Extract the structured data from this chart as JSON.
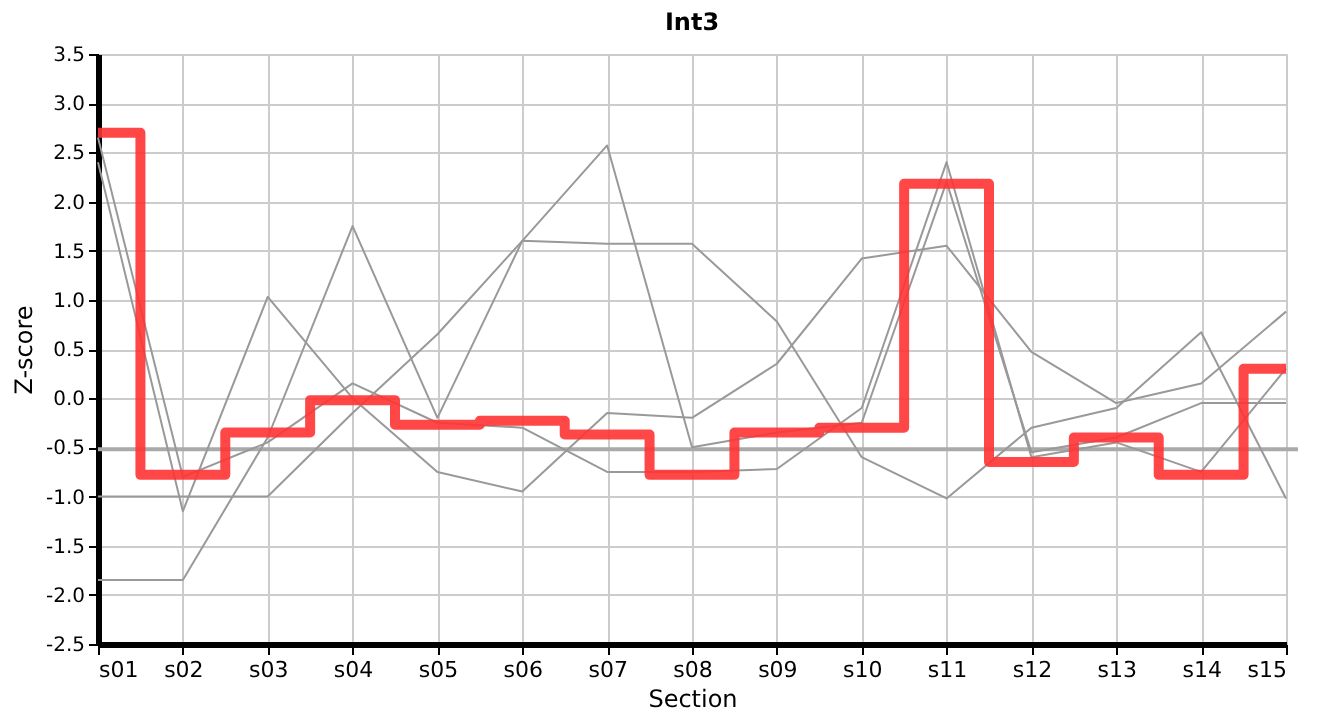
{
  "chart_data": {
    "type": "line",
    "title": "Int3",
    "xlabel": "Section",
    "ylabel": "Z-score",
    "categories": [
      "s01",
      "s02",
      "s03",
      "s04",
      "s05",
      "s06",
      "s07",
      "s08",
      "s09",
      "s10",
      "s11",
      "s12",
      "s13",
      "s14",
      "s15"
    ],
    "series": [
      {
        "color": "#999999",
        "values": [
          2.65,
          -0.8,
          -0.45,
          0.15,
          -0.25,
          -0.3,
          -0.75,
          -0.75,
          -0.72,
          -0.1,
          2.4,
          -0.6,
          -0.45,
          -0.75,
          0.3
        ]
      },
      {
        "color": "#999999",
        "values": [
          2.4,
          -1.15,
          1.03,
          0.0,
          -0.75,
          -0.95,
          -0.15,
          -0.2,
          0.35,
          1.42,
          1.55,
          0.47,
          -0.05,
          0.15,
          0.88
        ]
      },
      {
        "color": "#999999",
        "values": [
          -1.0,
          -1.0,
          -1.0,
          -0.15,
          0.65,
          1.6,
          2.57,
          -0.5,
          -0.35,
          -0.25,
          2.2,
          -0.55,
          -0.4,
          -0.05,
          -0.05
        ]
      },
      {
        "color": "#999999",
        "values": [
          -1.85,
          -1.85,
          -0.4,
          1.75,
          -0.2,
          1.6,
          1.57,
          1.57,
          0.78,
          -0.6,
          -1.02,
          -0.3,
          -0.1,
          0.67,
          -1.02
        ]
      },
      {
        "type": "step",
        "color": "#ff3333",
        "values": [
          2.7,
          -0.78,
          -0.35,
          -0.02,
          -0.27,
          -0.23,
          -0.37,
          -0.78,
          -0.35,
          -0.3,
          2.18,
          -0.65,
          -0.4,
          -0.78,
          0.3
        ]
      }
    ],
    "ref_lines": [
      {
        "axis": "y",
        "value": -0.52,
        "color": "#aaaaaa"
      }
    ],
    "ylim": [
      -2.5,
      3.5
    ],
    "yticks": [
      {
        "value": -2.5,
        "label": "-2.5"
      },
      {
        "value": -2,
        "label": "-2.0"
      },
      {
        "value": -1.5,
        "label": "-1.5"
      },
      {
        "value": -1,
        "label": "-1.0"
      },
      {
        "value": -0.5,
        "label": "-0.5"
      },
      {
        "value": 0,
        "label": "0.0"
      },
      {
        "value": 0.5,
        "label": "0.5"
      },
      {
        "value": 1,
        "label": "1.0"
      },
      {
        "value": 1.5,
        "label": "1.5"
      },
      {
        "value": 2,
        "label": "2.0"
      },
      {
        "value": 2.5,
        "label": "2.5"
      },
      {
        "value": 3,
        "label": "3.0"
      },
      {
        "value": 3.5,
        "label": "3.5"
      }
    ],
    "grid": true
  }
}
